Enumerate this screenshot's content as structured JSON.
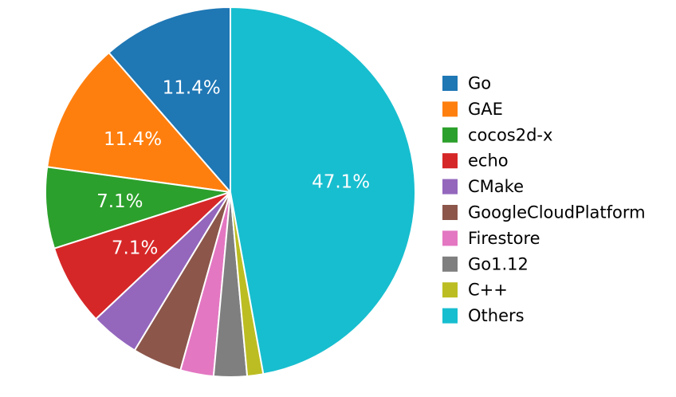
{
  "chart_data": {
    "type": "pie",
    "title": "",
    "start": "12 o'clock",
    "direction": "counterclockwise",
    "legend_position": "right",
    "slices": [
      {
        "name": "Go",
        "value": 11.4,
        "color": "#1f77b4",
        "label": "11.4%"
      },
      {
        "name": "GAE",
        "value": 11.4,
        "color": "#ff7f0e",
        "label": "11.4%"
      },
      {
        "name": "cocos2d-x",
        "value": 7.1,
        "color": "#2ca02c",
        "label": "7.1%"
      },
      {
        "name": "echo",
        "value": 7.1,
        "color": "#d62728",
        "label": "7.1%"
      },
      {
        "name": "CMake",
        "value": 4.3,
        "color": "#9467bd",
        "label": ""
      },
      {
        "name": "GoogleCloudPlatform",
        "value": 4.3,
        "color": "#8c564b",
        "label": ""
      },
      {
        "name": "Firestore",
        "value": 2.9,
        "color": "#e377c2",
        "label": ""
      },
      {
        "name": "Go1.12",
        "value": 2.9,
        "color": "#7f7f7f",
        "label": ""
      },
      {
        "name": "C++",
        "value": 1.4,
        "color": "#bcbd22",
        "label": ""
      },
      {
        "name": "Others",
        "value": 47.1,
        "color": "#17becf",
        "label": "47.1%"
      }
    ]
  }
}
